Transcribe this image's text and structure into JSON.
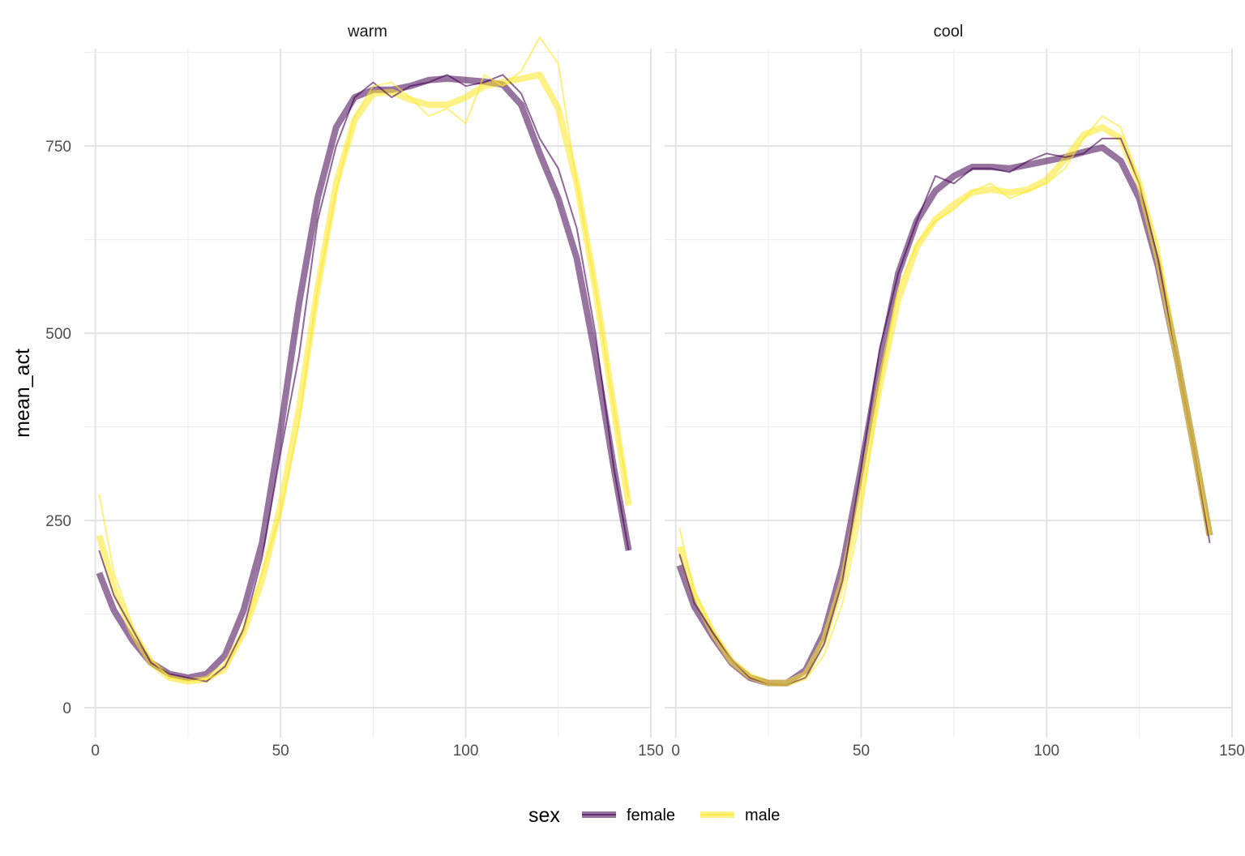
{
  "chart_data": {
    "type": "line",
    "ylabel": "mean_act",
    "xlabel": "",
    "xlim": [
      -3,
      150
    ],
    "ylim": [
      -40,
      880
    ],
    "x_ticks": [
      0,
      50,
      100,
      150
    ],
    "y_ticks": [
      0,
      250,
      500,
      750
    ],
    "x_tick_labels": [
      "0",
      "50",
      "100",
      "150"
    ],
    "y_tick_labels": [
      "0",
      "250",
      "500",
      "750"
    ],
    "grid": true,
    "legend": {
      "title": "sex",
      "position": "bottom",
      "entries": [
        {
          "label": "female",
          "color": "#440154"
        },
        {
          "label": "male",
          "color": "#FDE725"
        }
      ]
    },
    "panels": [
      {
        "strip": "warm",
        "series": [
          {
            "name": "female",
            "x": [
              1,
              5,
              10,
              15,
              20,
              25,
              30,
              35,
              40,
              45,
              50,
              55,
              60,
              65,
              70,
              75,
              80,
              85,
              90,
              95,
              100,
              105,
              110,
              115,
              120,
              125,
              130,
              135,
              140,
              144
            ],
            "raw": [
              210,
              150,
              105,
              60,
              45,
              40,
              35,
              55,
              105,
              200,
              340,
              470,
              650,
              750,
              815,
              835,
              815,
              830,
              835,
              845,
              830,
              835,
              845,
              820,
              760,
              720,
              640,
              500,
              320,
              210
            ],
            "smooth": [
              180,
              130,
              90,
              60,
              45,
              40,
              45,
              70,
              130,
              220,
              370,
              540,
              680,
              775,
              815,
              825,
              825,
              830,
              838,
              840,
              838,
              836,
              832,
              805,
              740,
              680,
              600,
              470,
              320,
              210
            ]
          },
          {
            "name": "male",
            "x": [
              1,
              5,
              10,
              15,
              20,
              25,
              30,
              35,
              40,
              45,
              50,
              55,
              60,
              65,
              70,
              75,
              80,
              85,
              90,
              95,
              100,
              105,
              110,
              115,
              120,
              125,
              130,
              135,
              140,
              144
            ],
            "raw": [
              285,
              180,
              110,
              65,
              40,
              35,
              38,
              48,
              100,
              180,
              260,
              380,
              560,
              690,
              790,
              830,
              835,
              815,
              790,
              800,
              780,
              845,
              830,
              850,
              895,
              860,
              700,
              560,
              400,
              280
            ],
            "smooth": [
              230,
              160,
              100,
              60,
              40,
              35,
              38,
              55,
              100,
              170,
              270,
              400,
              560,
              700,
              785,
              820,
              822,
              812,
              805,
              805,
              815,
              830,
              835,
              840,
              845,
              800,
              700,
              560,
              400,
              270
            ]
          }
        ]
      },
      {
        "strip": "cool",
        "series": [
          {
            "name": "female",
            "x": [
              1,
              5,
              10,
              15,
              20,
              25,
              30,
              35,
              40,
              45,
              50,
              55,
              60,
              65,
              70,
              75,
              80,
              85,
              90,
              95,
              100,
              105,
              110,
              115,
              120,
              125,
              130,
              135,
              140,
              144
            ],
            "raw": [
              205,
              140,
              100,
              65,
              40,
              32,
              30,
              40,
              85,
              170,
              320,
              480,
              580,
              650,
              710,
              700,
              720,
              720,
              715,
              730,
              740,
              735,
              740,
              760,
              760,
              700,
              600,
              470,
              340,
              220
            ],
            "smooth": [
              190,
              135,
              95,
              60,
              40,
              33,
              33,
              50,
              100,
              190,
              320,
              460,
              580,
              650,
              690,
              710,
              722,
              722,
              720,
              725,
              730,
              735,
              742,
              748,
              730,
              680,
              590,
              470,
              340,
              230
            ]
          },
          {
            "name": "male",
            "x": [
              1,
              5,
              10,
              15,
              20,
              25,
              30,
              35,
              40,
              45,
              50,
              55,
              60,
              65,
              70,
              75,
              80,
              85,
              90,
              95,
              100,
              105,
              110,
              115,
              120,
              125,
              130,
              135,
              140,
              144
            ],
            "raw": [
              240,
              155,
              105,
              65,
              42,
              32,
              30,
              38,
              70,
              140,
              260,
              430,
              560,
              620,
              650,
              665,
              690,
              700,
              680,
              690,
              700,
              720,
              760,
              790,
              775,
              700,
              620,
              470,
              340,
              230
            ],
            "smooth": [
              215,
              150,
              100,
              62,
              42,
              33,
              33,
              45,
              90,
              170,
              290,
              430,
              545,
              615,
              652,
              672,
              688,
              692,
              688,
              692,
              705,
              732,
              765,
              775,
              760,
              700,
              600,
              470,
              340,
              230
            ]
          }
        ]
      }
    ]
  }
}
